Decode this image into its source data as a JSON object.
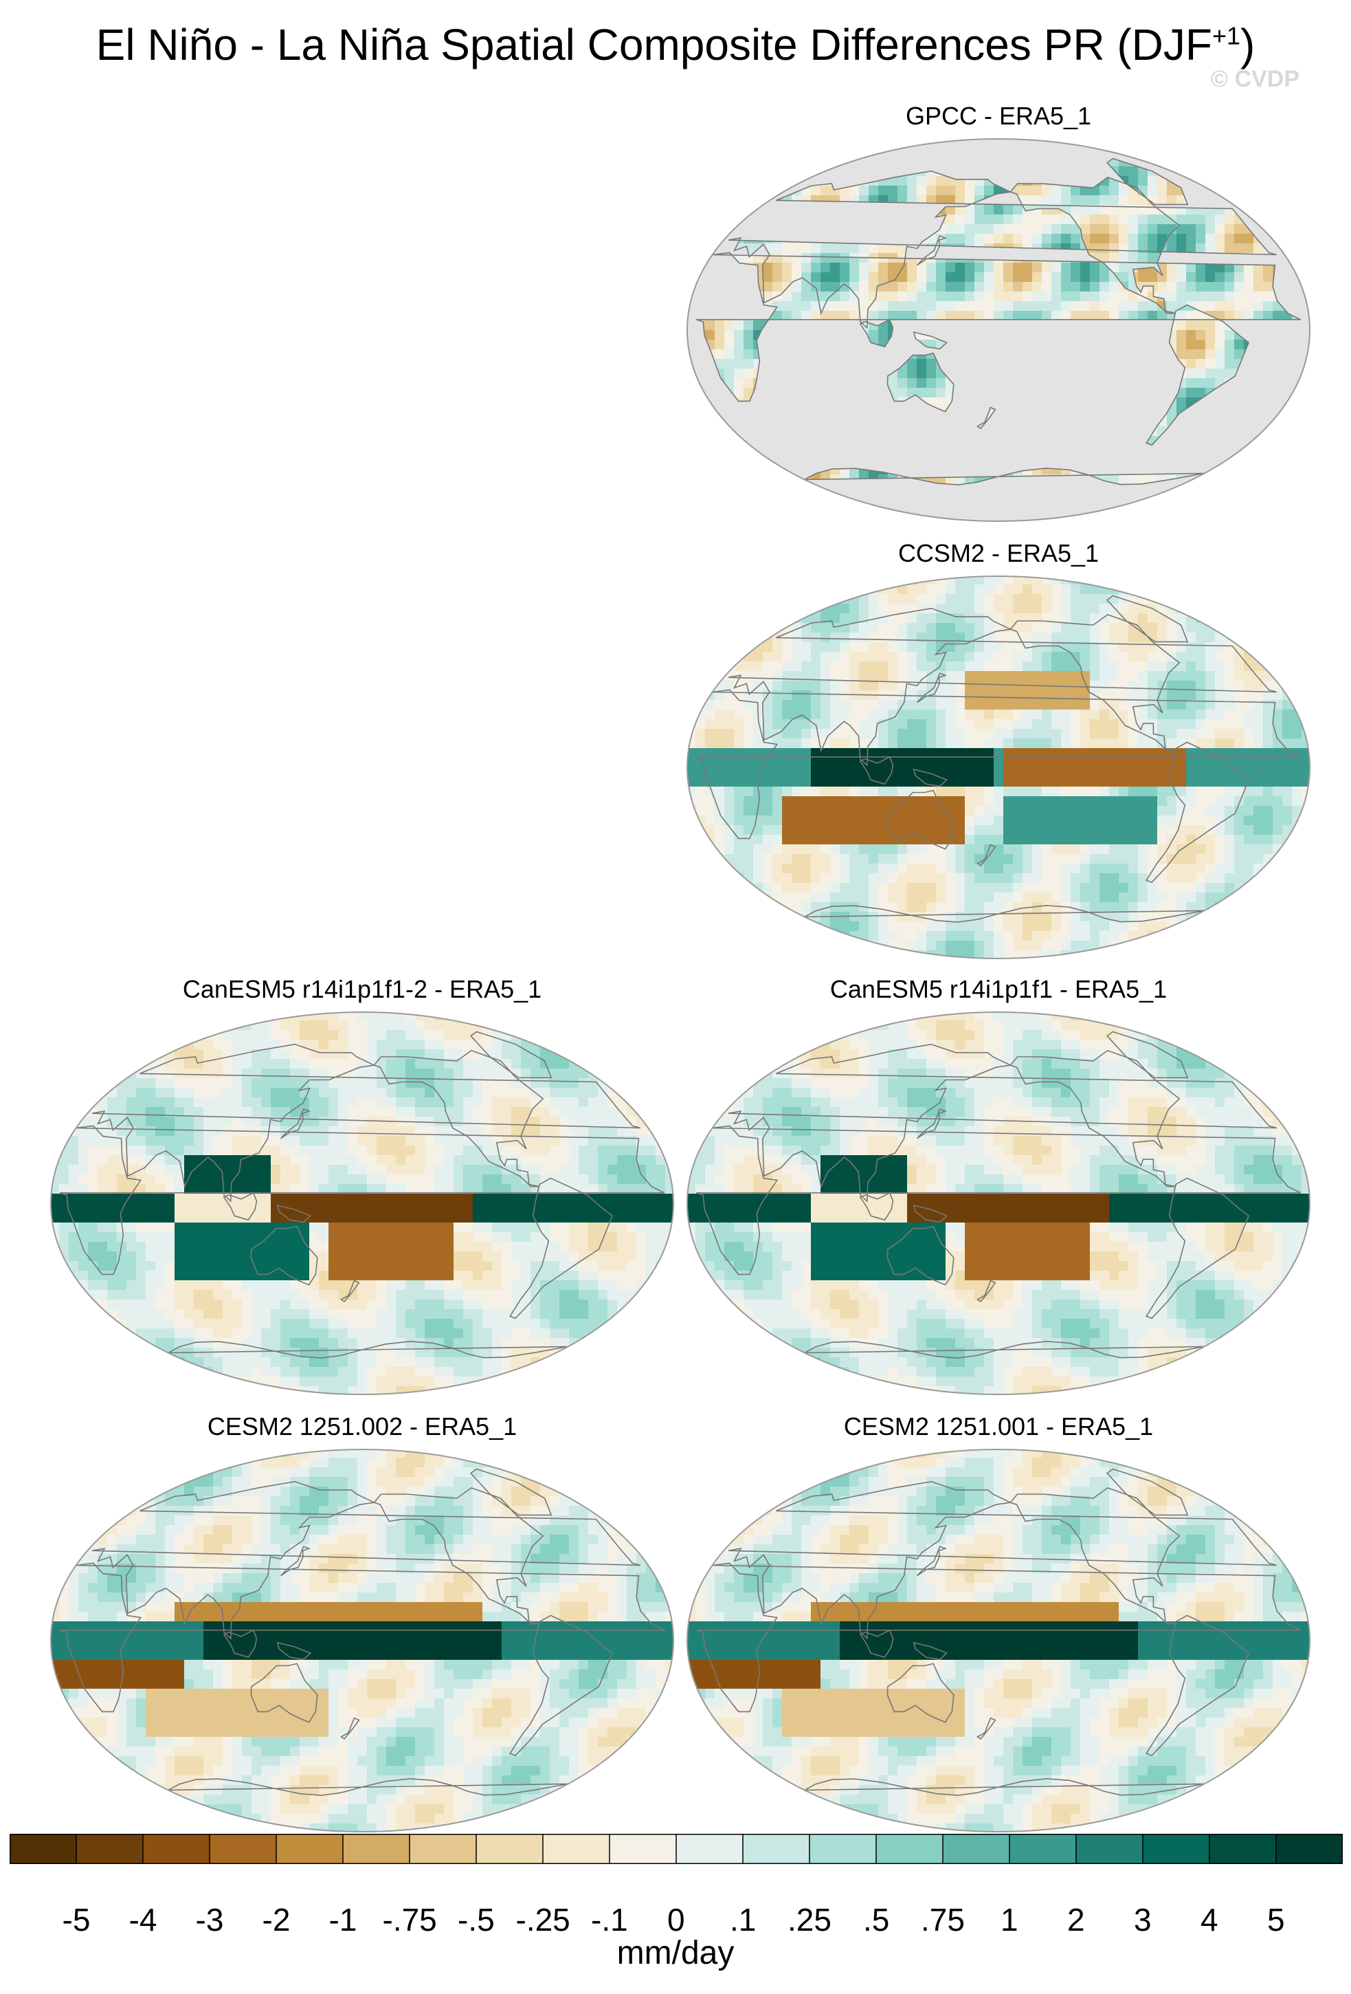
{
  "figure": {
    "title_main": "El Niño - La Niña Spatial Composite Differences PR (DJF",
    "title_sup": "+1",
    "title_close": ")",
    "watermark": "© CVDP"
  },
  "chart_data": {
    "type": "heatmap",
    "panels": [
      {
        "id": "gpcc",
        "title": "GPCC - ERA5_1",
        "coverage": "land-only",
        "ocean_fill": "#e3e3e3",
        "pattern": "obs"
      },
      {
        "id": "ccsm2",
        "title": "CCSM2 - ERA5_1",
        "coverage": "global",
        "pattern": "ccsm2"
      },
      {
        "id": "canesm5_a",
        "title": "CanESM5 r14i1p1f1-2 - ERA5_1",
        "coverage": "global",
        "pattern": "canesm5"
      },
      {
        "id": "canesm5_b",
        "title": "CanESM5 r14i1p1f1 - ERA5_1",
        "coverage": "global",
        "pattern": "canesm5"
      },
      {
        "id": "cesm2_a",
        "title": "CESM2 1251.002 - ERA5_1",
        "coverage": "global",
        "pattern": "cesm2"
      },
      {
        "id": "cesm2_b",
        "title": "CESM2 1251.001 - ERA5_1",
        "coverage": "global",
        "pattern": "cesm2"
      }
    ],
    "projection": "Robinson, Pacific-centred",
    "colorbar": {
      "units": "mm/day",
      "tick_labels": [
        "-5",
        "-4",
        "-3",
        "-2",
        "-1",
        "-.75",
        "-.5",
        "-.25",
        "-.1",
        "0",
        ".1",
        ".25",
        ".5",
        ".75",
        "1",
        "2",
        "3",
        "4",
        "5"
      ],
      "colors": [
        "#543005",
        "#6e3f0b",
        "#8c5110",
        "#a86a23",
        "#c18c3c",
        "#d3ab63",
        "#e3c78e",
        "#efdcb0",
        "#f5ead0",
        "#f5f1e6",
        "#e6f1ef",
        "#c9e8e3",
        "#aadfd6",
        "#86cfc3",
        "#5db5a7",
        "#3a9a8d",
        "#1f8175",
        "#056a5a",
        "#004f40",
        "#003c2f"
      ]
    }
  }
}
